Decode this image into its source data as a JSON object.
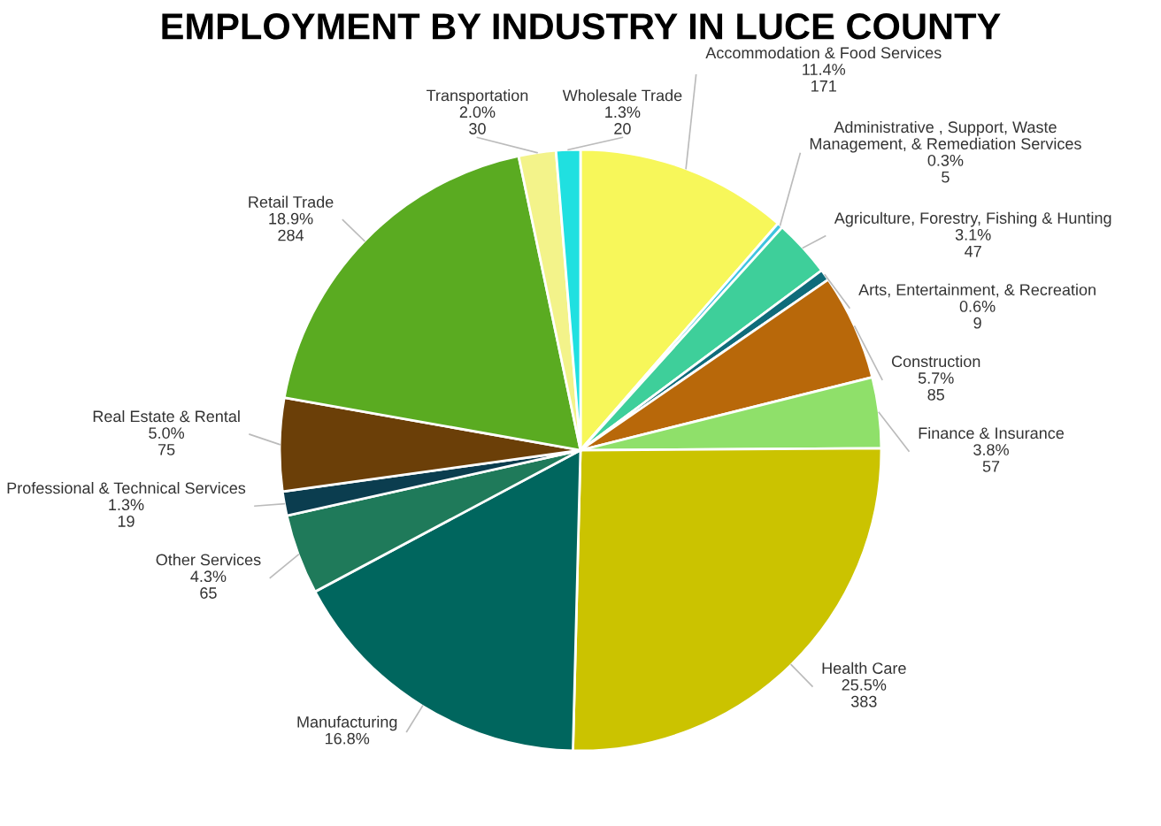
{
  "chart_data": {
    "type": "pie",
    "title": "EMPLOYMENT BY INDUSTRY IN LUCE COUNTY",
    "categories": [
      "Accommodation & Food Services",
      "Administrative , Support, Waste Management, & Remediation Services",
      "Agriculture, Forestry, Fishing & Hunting",
      "Arts, Entertainment, & Recreation",
      "Construction",
      "Finance & Insurance",
      "Health Care",
      "Manufacturing",
      "Other Services",
      "Professional & Technical Services",
      "Real Estate & Rental",
      "Retail Trade",
      "Transportation",
      "Wholesale Trade"
    ],
    "values": [
      11.4,
      0.3,
      3.1,
      0.6,
      5.7,
      3.8,
      25.5,
      16.8,
      4.3,
      1.3,
      5.0,
      18.9,
      2.0,
      1.3
    ],
    "value_labels": [
      "11.4%\n171",
      "0.3%\n5",
      "3.1%\n47",
      "0.6%\n9",
      "5.7%\n85",
      "3.8%\n57",
      "25.5%\n383",
      "16.8%",
      "4.3%\n65",
      "1.3%\n19",
      "5.0%\n75",
      "18.9%\n284",
      "2.0%\n30",
      "1.3%\n20"
    ],
    "colors": [
      "#f7f75a",
      "#40c4e0",
      "#3ecf9a",
      "#0f6b7a",
      "#b8680a",
      "#8fe06a",
      "#cbc300",
      "#00665e",
      "#1f7a5a",
      "#0b3d4f",
      "#6b3f08",
      "#5aab21",
      "#f3f38a",
      "#20e0e0"
    ]
  }
}
